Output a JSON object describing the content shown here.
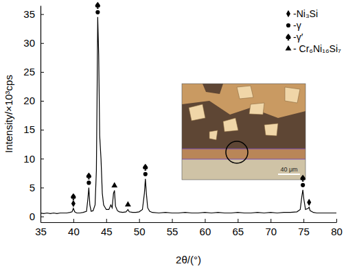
{
  "chart_data": {
    "type": "line",
    "x_label": "2θ/(°)",
    "y_label": "Intensity/×10³cps",
    "xlim": [
      35,
      80
    ],
    "xticks": [
      35,
      40,
      45,
      50,
      55,
      60,
      65,
      70,
      75,
      80
    ],
    "ylim": [
      -1,
      36.5
    ],
    "yticks": [
      0,
      5,
      10,
      15,
      20,
      25,
      30,
      35
    ],
    "color": "#000000",
    "legend": "upper right",
    "x": [
      35,
      35.5,
      36,
      36.5,
      37,
      37.5,
      38,
      38.5,
      39,
      39.5,
      39.8,
      40.0,
      40.2,
      40.5,
      41,
      41.5,
      42,
      42.2,
      42.35,
      42.5,
      42.7,
      43,
      43.3,
      43.5,
      43.6,
      43.7,
      43.85,
      44.0,
      44.2,
      44.4,
      44.6,
      45,
      45.4,
      45.7,
      45.9,
      46.1,
      46.25,
      46.4,
      46.7,
      47,
      47.5,
      48,
      48.3,
      48.5,
      49,
      49.5,
      50,
      50.5,
      50.8,
      50.95,
      51.1,
      51.3,
      51.6,
      52,
      53,
      54,
      55,
      56,
      57,
      58,
      59,
      60,
      61,
      62,
      63,
      64,
      65,
      66,
      67,
      68,
      69,
      70,
      71,
      72,
      73,
      74,
      74.5,
      74.75,
      74.9,
      75.05,
      75.3,
      75.7,
      75.85,
      76,
      76.5,
      77,
      78,
      79,
      80
    ],
    "values": [
      0.6,
      0.5,
      0.6,
      0.5,
      0.6,
      0.5,
      0.6,
      0.6,
      0.6,
      0.7,
      0.8,
      1.4,
      0.8,
      0.6,
      0.6,
      0.7,
      0.9,
      3.0,
      5.0,
      2.0,
      0.9,
      1.0,
      2.0,
      8,
      20,
      34.5,
      28,
      14,
      10,
      4,
      2,
      1.2,
      1.2,
      2.0,
      1.5,
      4.0,
      4.5,
      1.8,
      1.0,
      0.8,
      0.7,
      0.8,
      1.2,
      0.8,
      0.7,
      0.7,
      0.8,
      1.2,
      4,
      6.5,
      4,
      1.5,
      0.9,
      0.7,
      0.6,
      0.7,
      0.6,
      0.6,
      0.7,
      0.6,
      0.6,
      0.7,
      0.6,
      0.7,
      0.6,
      0.6,
      0.7,
      0.6,
      0.6,
      0.7,
      0.6,
      0.7,
      0.6,
      0.7,
      0.7,
      0.8,
      1.2,
      3.5,
      4.6,
      3,
      1.2,
      1.4,
      1.6,
      1.0,
      0.7,
      0.6,
      0.6,
      0.6,
      0.6
    ],
    "phases": [
      {
        "name": "-Ni₃Si",
        "marker": "diamond"
      },
      {
        "name": "-γ",
        "marker": "circle"
      },
      {
        "name": "-γ′",
        "marker": "spade"
      },
      {
        "name": "- Cr₆Ni₁₆Si₇",
        "marker": "triangle"
      }
    ],
    "peaks": [
      {
        "x": 40.0,
        "intensity": 1.4,
        "phases": [
          0,
          2
        ]
      },
      {
        "x": 42.35,
        "intensity": 5.0,
        "phases": [
          1,
          2
        ]
      },
      {
        "x": 43.7,
        "intensity": 34.5,
        "phases": [
          1,
          2
        ]
      },
      {
        "x": 46.25,
        "intensity": 4.5,
        "phases": [
          3
        ]
      },
      {
        "x": 48.3,
        "intensity": 1.2,
        "phases": [
          3
        ]
      },
      {
        "x": 50.95,
        "intensity": 6.5,
        "phases": [
          1,
          2
        ]
      },
      {
        "x": 74.9,
        "intensity": 4.6,
        "phases": [
          1,
          2
        ]
      },
      {
        "x": 75.85,
        "intensity": 1.6,
        "phases": [
          0
        ]
      }
    ],
    "inset": {
      "scale_label": "40 μm"
    }
  }
}
